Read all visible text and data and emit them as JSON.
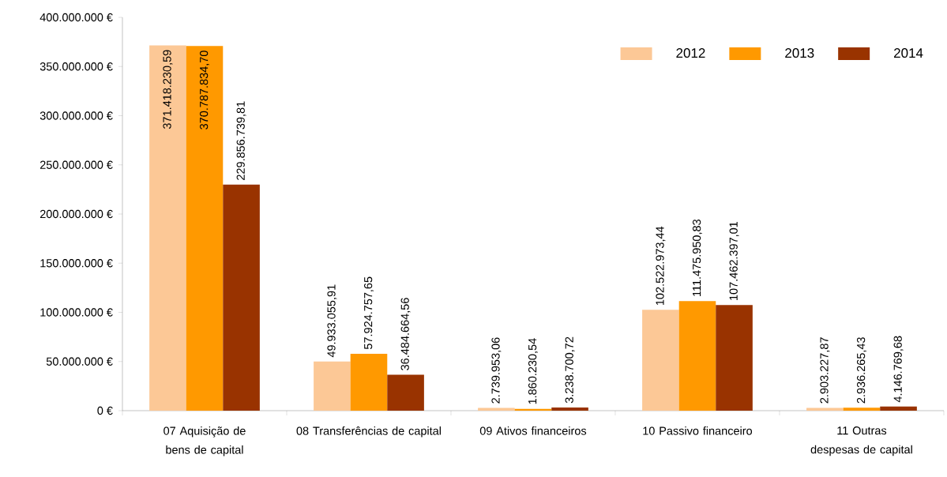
{
  "chart_data": {
    "type": "bar",
    "categories": [
      "07 Aquisição de bens de capital",
      "08 Transferências de capital",
      "09 Ativos financeiros",
      "10 Passivo financeiro",
      "11 Outras despesas de capital"
    ],
    "series": [
      {
        "name": "2012",
        "color": "#fcc896",
        "values": [
          371418230.59,
          49933055.91,
          2739953.06,
          102522973.44,
          2903227.87
        ],
        "value_labels": [
          "371.418.230,59",
          "49.933.055,91",
          "2.739.953,06",
          "102.522.973,44",
          "2.903.227,87"
        ]
      },
      {
        "name": "2013",
        "color": "#ff9900",
        "values": [
          370787834.7,
          57924757.65,
          1860230.54,
          111475950.83,
          2936265.43
        ],
        "value_labels": [
          "370.787.834,70",
          "57.924.757,65",
          "1.860.230,54",
          "111.475.950,83",
          "2.936.265,43"
        ]
      },
      {
        "name": "2014",
        "color": "#993300",
        "values": [
          229856739.81,
          36484664.56,
          3238700.72,
          107462397.01,
          4146769.68
        ],
        "value_labels": [
          "229.856.739,81",
          "36.484.664,56",
          "3.238.700,72",
          "107.462.397,01",
          "4.146.769,68"
        ]
      }
    ],
    "ylim": [
      0,
      400000000
    ],
    "yticks": [
      {
        "value": 0,
        "label": "0 €"
      },
      {
        "value": 50000000,
        "label": "50.000.000 €"
      },
      {
        "value": 100000000,
        "label": "100.000.000 €"
      },
      {
        "value": 150000000,
        "label": "150.000.000 €"
      },
      {
        "value": 200000000,
        "label": "200.000.000 €"
      },
      {
        "value": 250000000,
        "label": "250.000.000 €"
      },
      {
        "value": 300000000,
        "label": "300.000.000 €"
      },
      {
        "value": 350000000,
        "label": "350.000.000 €"
      },
      {
        "value": 400000000,
        "label": "400.000.000 €"
      }
    ],
    "legend": "top right"
  }
}
